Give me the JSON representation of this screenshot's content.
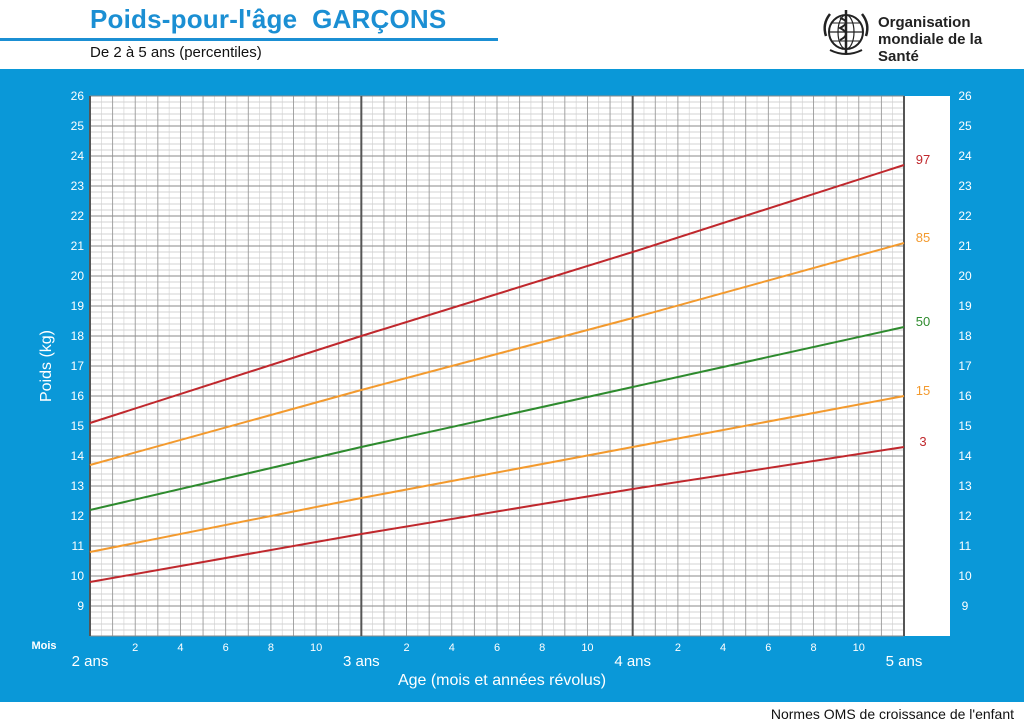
{
  "header": {
    "title": "Poids-pour-l'âge  GARÇONS",
    "subtitle": "De 2 à 5 ans (percentiles)"
  },
  "organization": {
    "line1": "Organisation",
    "line2": "mondiale de la Santé",
    "logo_icon": "who-emblem-icon"
  },
  "footer": {
    "text": "Normes OMS de croissance de l'enfant"
  },
  "colors": {
    "panel": "#0a98d8",
    "title": "#1b8fd3",
    "p3": "#c0282d",
    "p15": "#f39a2e",
    "p50": "#2e8b2e",
    "p85": "#f39a2e",
    "p97": "#c0282d"
  },
  "chart_data": {
    "type": "line",
    "ylabel": "Poids (kg)",
    "xlabel": "Age (mois et années révolus)",
    "xlim": [
      24,
      60
    ],
    "ylim": [
      8,
      26
    ],
    "x_unit_label": "Mois",
    "y_ticks": [
      9,
      10,
      11,
      12,
      13,
      14,
      15,
      16,
      17,
      18,
      19,
      20,
      21,
      22,
      23,
      24,
      25,
      26
    ],
    "year_ticks": [
      {
        "month": 24,
        "label": "2 ans"
      },
      {
        "month": 36,
        "label": "3 ans"
      },
      {
        "month": 48,
        "label": "4 ans"
      },
      {
        "month": 60,
        "label": "5 ans"
      }
    ],
    "month_labels": [
      "2",
      "4",
      "6",
      "8",
      "10"
    ],
    "grid": true,
    "series": [
      {
        "name": "3",
        "color": "#c0282d",
        "x": [
          24,
          36,
          48,
          60
        ],
        "values": [
          9.8,
          11.4,
          12.9,
          14.3
        ]
      },
      {
        "name": "15",
        "color": "#f39a2e",
        "x": [
          24,
          36,
          48,
          60
        ],
        "values": [
          10.8,
          12.6,
          14.3,
          16.0
        ]
      },
      {
        "name": "50",
        "color": "#2e8b2e",
        "x": [
          24,
          36,
          48,
          60
        ],
        "values": [
          12.2,
          14.3,
          16.3,
          18.3
        ]
      },
      {
        "name": "85",
        "color": "#f39a2e",
        "x": [
          24,
          36,
          48,
          60
        ],
        "values": [
          13.7,
          16.2,
          18.6,
          21.1
        ]
      },
      {
        "name": "97",
        "color": "#c0282d",
        "x": [
          24,
          36,
          48,
          60
        ],
        "values": [
          15.1,
          18.0,
          20.8,
          23.7
        ]
      }
    ]
  }
}
